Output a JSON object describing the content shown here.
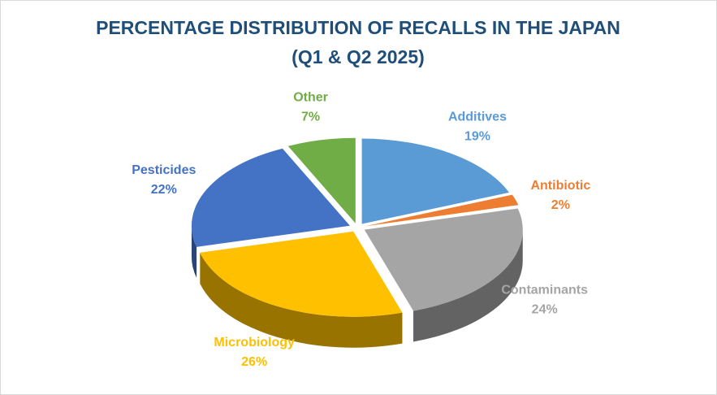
{
  "chart_data": {
    "type": "pie3d",
    "title": "PERCENTAGE DISTRIBUTION OF RECALLS IN THE JAPAN",
    "subtitle": "(Q1 & Q2 2025)",
    "categories": [
      "Additives",
      "Antibiotic",
      "Contaminants",
      "Microbiology",
      "Pesticides",
      "Other"
    ],
    "values": [
      19,
      2,
      24,
      26,
      22,
      7
    ],
    "value_labels": [
      "19%",
      "2%",
      "24%",
      "26%",
      "22%",
      "7%"
    ],
    "colors": [
      "#5b9bd5",
      "#ed7d31",
      "#a5a5a5",
      "#ffc000",
      "#4472c4",
      "#70ad47"
    ]
  }
}
